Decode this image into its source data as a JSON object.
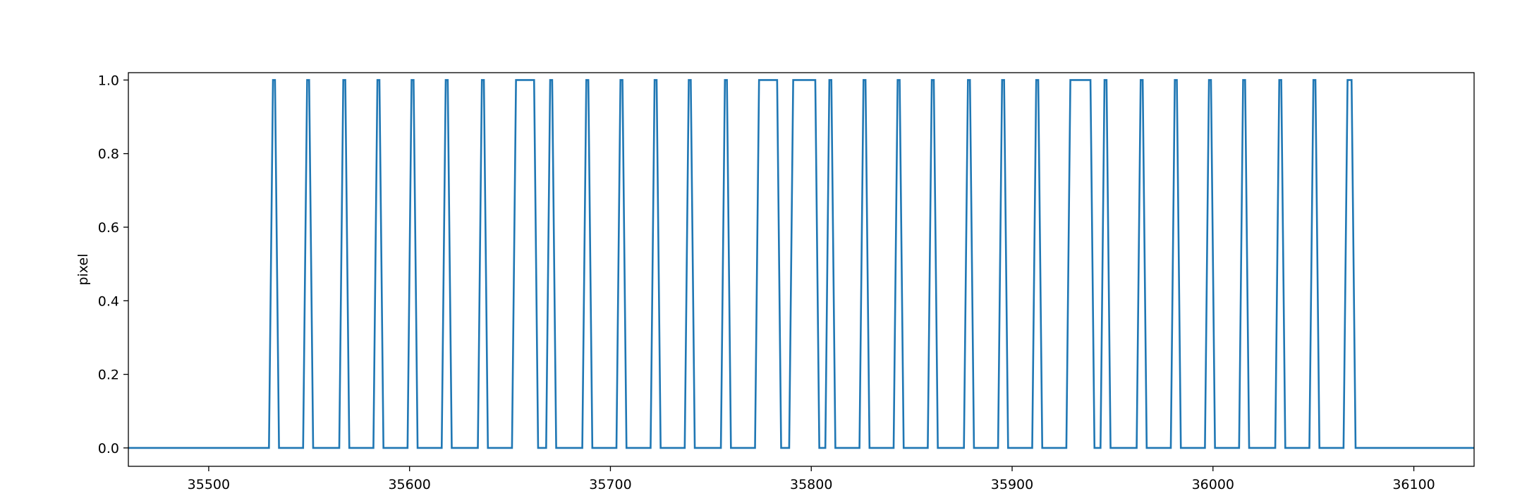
{
  "chart_data": {
    "type": "line",
    "title": "",
    "xlabel": "",
    "ylabel": "pixel",
    "xlim": [
      35460,
      36130
    ],
    "ylim": [
      -0.05,
      1.02
    ],
    "xticks": [
      35500,
      35600,
      35700,
      35800,
      35900,
      36000,
      36100
    ],
    "yticks": [
      0.0,
      0.2,
      0.4,
      0.6,
      0.8,
      1.0
    ],
    "grid": false,
    "legend": "none",
    "series": [
      {
        "color": "#1f77b4",
        "x": [
          35460,
          35530,
          35532,
          35533,
          35535,
          35547,
          35549,
          35550,
          35552,
          35565,
          35567,
          35568,
          35570,
          35582,
          35584,
          35585,
          35587,
          35599,
          35601,
          35602,
          35604,
          35616,
          35618,
          35619,
          35621,
          35634,
          35636,
          35637,
          35639,
          35651,
          35653,
          35662,
          35664,
          35668,
          35670,
          35671,
          35673,
          35686,
          35688,
          35689,
          35691,
          35703,
          35705,
          35706,
          35708,
          35720,
          35722,
          35723,
          35725,
          35737,
          35739,
          35740,
          35742,
          35755,
          35757,
          35758,
          35760,
          35772,
          35774,
          35783,
          35785,
          35789,
          35791,
          35802,
          35804,
          35807,
          35809,
          35810,
          35812,
          35824,
          35826,
          35827,
          35829,
          35841,
          35843,
          35844,
          35846,
          35858,
          35860,
          35861,
          35863,
          35876,
          35878,
          35879,
          35881,
          35893,
          35895,
          35896,
          35898,
          35910,
          35912,
          35913,
          35915,
          35927,
          35929,
          35939,
          35941,
          35944,
          35946,
          35947,
          35949,
          35962,
          35964,
          35965,
          35967,
          35979,
          35981,
          35982,
          35984,
          35996,
          35998,
          35999,
          36001,
          36013,
          36015,
          36016,
          36018,
          36031,
          36033,
          36034,
          36036,
          36048,
          36050,
          36051,
          36053,
          36065,
          36067,
          36069,
          36071,
          36130
        ],
        "y": [
          0,
          0,
          1,
          1,
          0,
          0,
          1,
          1,
          0,
          0,
          1,
          1,
          0,
          0,
          1,
          1,
          0,
          0,
          1,
          1,
          0,
          0,
          1,
          1,
          0,
          0,
          1,
          1,
          0,
          0,
          1,
          1,
          0,
          0,
          1,
          1,
          0,
          0,
          1,
          1,
          0,
          0,
          1,
          1,
          0,
          0,
          1,
          1,
          0,
          0,
          1,
          1,
          0,
          0,
          1,
          1,
          0,
          0,
          1,
          1,
          0,
          0,
          1,
          1,
          0,
          0,
          1,
          1,
          0,
          0,
          1,
          1,
          0,
          0,
          1,
          1,
          0,
          0,
          1,
          1,
          0,
          0,
          1,
          1,
          0,
          0,
          1,
          1,
          0,
          0,
          1,
          1,
          0,
          0,
          1,
          1,
          0,
          0,
          1,
          1,
          0,
          0,
          1,
          1,
          0,
          0,
          1,
          1,
          0,
          0,
          1,
          1,
          0,
          0,
          1,
          1,
          0,
          0,
          1,
          1,
          0,
          0,
          1,
          1,
          0,
          0,
          1,
          1,
          0,
          0
        ]
      }
    ]
  }
}
